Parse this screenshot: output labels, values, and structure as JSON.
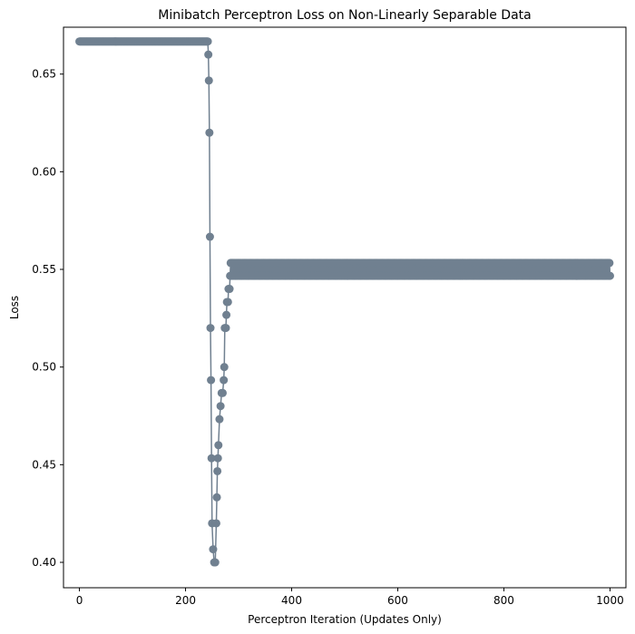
{
  "chart_data": {
    "type": "line",
    "title": "Minibatch Perceptron Loss on Non-Linearly Separable Data",
    "xlabel": "Perceptron Iteration (Updates Only)",
    "ylabel": "Loss",
    "xlim": [
      -30,
      1030
    ],
    "ylim": [
      0.387,
      0.674
    ],
    "xticks": [
      0,
      200,
      400,
      600,
      800,
      1000
    ],
    "yticks": [
      0.4,
      0.45,
      0.5,
      0.55,
      0.6,
      0.65
    ],
    "ytick_labels": [
      "0.40",
      "0.45",
      "0.50",
      "0.55",
      "0.60",
      "0.65"
    ],
    "grid": false,
    "legend": "none",
    "series_color": "#708090",
    "segments": [
      {
        "x_start": 0,
        "x_end": 241,
        "value": 0.6667
      },
      {
        "x_start": 285,
        "x_end": 1000,
        "alternating": [
          0.5533,
          0.5467
        ]
      }
    ],
    "transition_points": [
      [
        242,
        0.6667
      ],
      [
        243,
        0.66
      ],
      [
        244,
        0.6467
      ],
      [
        245,
        0.62
      ],
      [
        246,
        0.5667
      ],
      [
        247,
        0.52
      ],
      [
        248,
        0.4933
      ],
      [
        249,
        0.4533
      ],
      [
        250,
        0.42
      ],
      [
        252,
        0.4067
      ],
      [
        254,
        0.4
      ],
      [
        256,
        0.4
      ],
      [
        258,
        0.42
      ],
      [
        259,
        0.4333
      ],
      [
        260,
        0.4467
      ],
      [
        261,
        0.4533
      ],
      [
        262,
        0.46
      ],
      [
        264,
        0.4733
      ],
      [
        266,
        0.48
      ],
      [
        268,
        0.4867
      ],
      [
        270,
        0.4867
      ],
      [
        272,
        0.4933
      ],
      [
        273,
        0.5
      ],
      [
        274,
        0.52
      ],
      [
        276,
        0.52
      ],
      [
        277,
        0.5267
      ],
      [
        278,
        0.5333
      ],
      [
        280,
        0.5333
      ],
      [
        281,
        0.54
      ],
      [
        283,
        0.54
      ],
      [
        284,
        0.5467
      ]
    ]
  }
}
